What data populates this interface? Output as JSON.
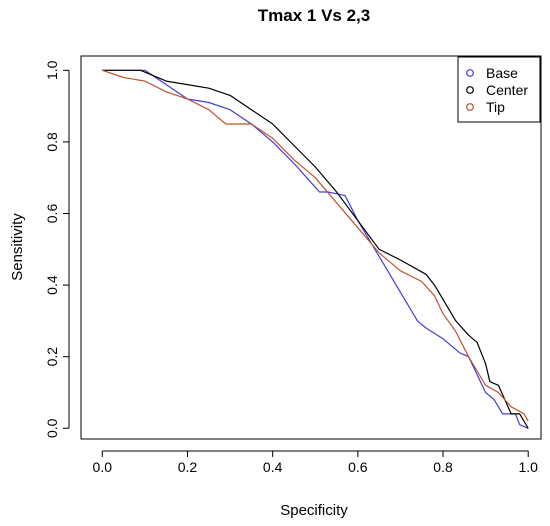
{
  "chart_data": {
    "type": "line",
    "title": "Tmax 1 Vs 2,3",
    "xlabel": "Specificity",
    "ylabel": "Sensitivity",
    "xlim": [
      -0.05,
      1.03
    ],
    "ylim": [
      -0.03,
      1.04
    ],
    "x_ticks": [
      "0.0",
      "0.2",
      "0.4",
      "0.6",
      "0.8",
      "1.0"
    ],
    "y_ticks": [
      "0.0",
      "0.2",
      "0.4",
      "0.6",
      "0.8",
      "1.0"
    ],
    "legend_position": "top-right",
    "grid": false,
    "series": [
      {
        "name": "Base",
        "color": "#3f3fd9",
        "points": [
          [
            0.0,
            1.0
          ],
          [
            0.1,
            1.0
          ],
          [
            0.15,
            0.96
          ],
          [
            0.2,
            0.92
          ],
          [
            0.25,
            0.91
          ],
          [
            0.3,
            0.89
          ],
          [
            0.35,
            0.85
          ],
          [
            0.4,
            0.8
          ],
          [
            0.45,
            0.74
          ],
          [
            0.48,
            0.7
          ],
          [
            0.51,
            0.66
          ],
          [
            0.53,
            0.66
          ],
          [
            0.57,
            0.65
          ],
          [
            0.6,
            0.58
          ],
          [
            0.65,
            0.48
          ],
          [
            0.7,
            0.38
          ],
          [
            0.74,
            0.3
          ],
          [
            0.76,
            0.28
          ],
          [
            0.8,
            0.25
          ],
          [
            0.84,
            0.21
          ],
          [
            0.86,
            0.2
          ],
          [
            0.9,
            0.1
          ],
          [
            0.92,
            0.08
          ],
          [
            0.94,
            0.04
          ],
          [
            0.97,
            0.04
          ],
          [
            0.98,
            0.01
          ],
          [
            1.0,
            0.0
          ]
        ]
      },
      {
        "name": "Center",
        "color": "#000000",
        "points": [
          [
            0.0,
            1.0
          ],
          [
            0.09,
            1.0
          ],
          [
            0.15,
            0.97
          ],
          [
            0.2,
            0.96
          ],
          [
            0.25,
            0.95
          ],
          [
            0.3,
            0.93
          ],
          [
            0.35,
            0.89
          ],
          [
            0.4,
            0.85
          ],
          [
            0.45,
            0.79
          ],
          [
            0.5,
            0.73
          ],
          [
            0.55,
            0.66
          ],
          [
            0.6,
            0.58
          ],
          [
            0.65,
            0.5
          ],
          [
            0.7,
            0.47
          ],
          [
            0.76,
            0.43
          ],
          [
            0.78,
            0.4
          ],
          [
            0.83,
            0.3
          ],
          [
            0.86,
            0.26
          ],
          [
            0.88,
            0.24
          ],
          [
            0.9,
            0.18
          ],
          [
            0.91,
            0.13
          ],
          [
            0.93,
            0.12
          ],
          [
            0.96,
            0.04
          ],
          [
            0.98,
            0.04
          ],
          [
            1.0,
            0.0
          ]
        ]
      },
      {
        "name": "Tip",
        "color": "#c0532c",
        "points": [
          [
            0.0,
            1.0
          ],
          [
            0.05,
            0.98
          ],
          [
            0.1,
            0.97
          ],
          [
            0.15,
            0.94
          ],
          [
            0.2,
            0.92
          ],
          [
            0.25,
            0.89
          ],
          [
            0.29,
            0.85
          ],
          [
            0.35,
            0.85
          ],
          [
            0.4,
            0.81
          ],
          [
            0.45,
            0.75
          ],
          [
            0.5,
            0.7
          ],
          [
            0.55,
            0.63
          ],
          [
            0.6,
            0.56
          ],
          [
            0.65,
            0.49
          ],
          [
            0.7,
            0.44
          ],
          [
            0.75,
            0.41
          ],
          [
            0.78,
            0.37
          ],
          [
            0.8,
            0.32
          ],
          [
            0.83,
            0.27
          ],
          [
            0.86,
            0.2
          ],
          [
            0.88,
            0.16
          ],
          [
            0.9,
            0.12
          ],
          [
            0.93,
            0.1
          ],
          [
            0.96,
            0.06
          ],
          [
            0.99,
            0.04
          ],
          [
            1.0,
            0.02
          ]
        ]
      }
    ]
  }
}
